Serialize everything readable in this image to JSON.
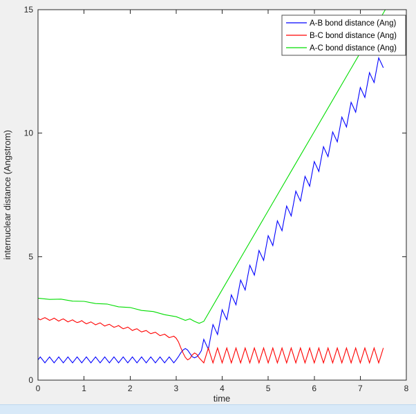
{
  "figure": {
    "background": "#f0f0f0",
    "plot_background": "#ffffff",
    "axis_color": "#262626",
    "bottom_strip_color": "#d8e9f8"
  },
  "chart_data": {
    "type": "line",
    "title": "",
    "xlabel": "time",
    "ylabel": "internuclear distance (Angstrom)",
    "xlim": [
      0,
      8
    ],
    "ylim": [
      0,
      15
    ],
    "xticks": [
      0,
      1,
      2,
      3,
      4,
      5,
      6,
      7,
      8
    ],
    "yticks": [
      0,
      5,
      10,
      15
    ],
    "grid": false,
    "legend": {
      "position": "top-right",
      "entries": [
        {
          "label": "A-B bond distance (Ang)",
          "color": "#0000ff"
        },
        {
          "label": "B-C bond distance (Ang)",
          "color": "#ff0000"
        },
        {
          "label": "A-C bond distance (Ang)",
          "color": "#00dd00"
        }
      ]
    },
    "x": [
      0,
      0.05,
      0.1,
      0.15,
      0.2,
      0.25,
      0.3,
      0.35,
      0.4,
      0.45,
      0.5,
      0.55,
      0.6,
      0.65,
      0.7,
      0.75,
      0.8,
      0.85,
      0.9,
      0.95,
      1,
      1.05,
      1.1,
      1.15,
      1.2,
      1.25,
      1.3,
      1.35,
      1.4,
      1.45,
      1.5,
      1.55,
      1.6,
      1.65,
      1.7,
      1.75,
      1.8,
      1.85,
      1.9,
      1.95,
      2,
      2.05,
      2.1,
      2.15,
      2.2,
      2.25,
      2.3,
      2.35,
      2.4,
      2.45,
      2.5,
      2.55,
      2.6,
      2.65,
      2.7,
      2.75,
      2.8,
      2.85,
      2.9,
      2.95,
      3,
      3.05,
      3.1,
      3.15,
      3.2,
      3.25,
      3.3,
      3.35,
      3.4,
      3.45,
      3.5,
      3.55,
      3.6,
      3.65,
      3.7,
      3.75,
      3.8,
      3.85,
      3.9,
      3.95,
      4,
      4.05,
      4.1,
      4.15,
      4.2,
      4.25,
      4.3,
      4.35,
      4.4,
      4.45,
      4.5,
      4.55,
      4.6,
      4.65,
      4.7,
      4.75,
      4.8,
      4.85,
      4.9,
      4.95,
      5,
      5.05,
      5.1,
      5.15,
      5.2,
      5.25,
      5.3,
      5.35,
      5.4,
      5.45,
      5.5,
      5.55,
      5.6,
      5.65,
      5.7,
      5.75,
      5.8,
      5.85,
      5.9,
      5.95,
      6,
      6.05,
      6.1,
      6.15,
      6.2,
      6.25,
      6.3,
      6.35,
      6.4,
      6.45,
      6.5,
      6.55,
      6.6,
      6.65,
      6.7,
      6.75,
      6.8,
      6.85,
      6.9,
      6.95,
      7,
      7.05,
      7.1,
      7.15,
      7.2,
      7.25,
      7.3,
      7.35,
      7.4,
      7.45,
      7.5
    ],
    "series": [
      {
        "name": "A-B bond distance (Ang)",
        "color": "#0000ff",
        "values": [
          0.82,
          0.94,
          0.82,
          0.7,
          0.82,
          0.94,
          0.82,
          0.7,
          0.82,
          0.94,
          0.82,
          0.7,
          0.82,
          0.94,
          0.82,
          0.7,
          0.82,
          0.94,
          0.82,
          0.7,
          0.82,
          0.94,
          0.82,
          0.7,
          0.82,
          0.94,
          0.82,
          0.7,
          0.82,
          0.94,
          0.82,
          0.7,
          0.82,
          0.94,
          0.82,
          0.7,
          0.82,
          0.94,
          0.82,
          0.7,
          0.82,
          0.94,
          0.82,
          0.7,
          0.82,
          0.94,
          0.82,
          0.7,
          0.82,
          0.94,
          0.82,
          0.7,
          0.82,
          0.94,
          0.82,
          0.7,
          0.82,
          0.94,
          0.82,
          0.7,
          0.82,
          0.95,
          1.1,
          1.22,
          1.28,
          1.22,
          1.08,
          0.95,
          0.9,
          0.95,
          1.05,
          1.2,
          1.65,
          1.45,
          1.25,
          1.75,
          2.25,
          2.05,
          1.85,
          2.35,
          2.85,
          2.65,
          2.45,
          2.95,
          3.45,
          3.25,
          3.05,
          3.55,
          4.05,
          3.85,
          3.65,
          4.15,
          4.65,
          4.45,
          4.25,
          4.75,
          5.25,
          5.05,
          4.85,
          5.35,
          5.85,
          5.65,
          5.45,
          5.95,
          6.45,
          6.25,
          6.05,
          6.55,
          7.05,
          6.85,
          6.65,
          7.15,
          7.65,
          7.45,
          7.25,
          7.75,
          8.25,
          8.05,
          7.85,
          8.35,
          8.85,
          8.65,
          8.45,
          8.95,
          9.45,
          9.25,
          9.05,
          9.55,
          10.05,
          9.85,
          9.65,
          10.15,
          10.65,
          10.45,
          10.25,
          10.75,
          11.25,
          11.05,
          10.85,
          11.35,
          11.85,
          11.65,
          11.45,
          11.95,
          12.45,
          12.25,
          12.05,
          12.55,
          13.05,
          12.85,
          12.65
        ]
      },
      {
        "name": "B-C bond distance (Ang)",
        "color": "#ff0000",
        "values": [
          2.5,
          2.44,
          2.49,
          2.53,
          2.48,
          2.42,
          2.46,
          2.51,
          2.45,
          2.39,
          2.44,
          2.48,
          2.42,
          2.36,
          2.4,
          2.44,
          2.38,
          2.33,
          2.36,
          2.41,
          2.34,
          2.28,
          2.32,
          2.36,
          2.3,
          2.24,
          2.28,
          2.32,
          2.25,
          2.19,
          2.23,
          2.26,
          2.2,
          2.14,
          2.17,
          2.21,
          2.14,
          2.08,
          2.11,
          2.15,
          2.08,
          2.01,
          2.05,
          2.08,
          2.01,
          1.95,
          1.98,
          2.01,
          1.94,
          1.88,
          1.91,
          1.94,
          1.87,
          1.8,
          1.83,
          1.86,
          1.79,
          1.72,
          1.75,
          1.78,
          1.7,
          1.55,
          1.32,
          1.1,
          0.92,
          0.82,
          0.88,
          1.02,
          1.1,
          1.04,
          0.9,
          0.8,
          0.7,
          1,
          1.3,
          1,
          0.7,
          1,
          1.3,
          1,
          0.7,
          1,
          1.3,
          1,
          0.7,
          1,
          1.3,
          1,
          0.7,
          1,
          1.3,
          1,
          0.7,
          1,
          1.3,
          1,
          0.7,
          1,
          1.3,
          1,
          0.7,
          1,
          1.3,
          1,
          0.7,
          1,
          1.3,
          1,
          0.7,
          1,
          1.3,
          1,
          0.7,
          1,
          1.3,
          1,
          0.7,
          1,
          1.3,
          1,
          0.7,
          1,
          1.3,
          1,
          0.7,
          1,
          1.3,
          1,
          0.7,
          1,
          1.3,
          1,
          0.7,
          1,
          1.3,
          1,
          0.7,
          1,
          1.3,
          1,
          0.7,
          1,
          1.3,
          1,
          0.7,
          1,
          1.3,
          1,
          0.7,
          1,
          1.3
        ]
      },
      {
        "name": "A-C bond distance (Ang)",
        "color": "#00dd00",
        "x": [
          0,
          0.25,
          0.5,
          0.75,
          1,
          1.25,
          1.5,
          1.75,
          2,
          2.25,
          2.5,
          2.75,
          3,
          3.1,
          3.2,
          3.3,
          3.4,
          3.5,
          3.6,
          4,
          4.5,
          5,
          5.5,
          6,
          6.5,
          7,
          7.5,
          7.6
        ],
        "values": [
          3.32,
          3.27,
          3.28,
          3.2,
          3.19,
          3.1,
          3.08,
          2.97,
          2.94,
          2.82,
          2.78,
          2.65,
          2.57,
          2.5,
          2.42,
          2.48,
          2.38,
          2.3,
          2.38,
          3.66,
          5.26,
          6.86,
          8.46,
          10.06,
          11.66,
          13.26,
          14.86,
          15.18
        ]
      }
    ]
  }
}
